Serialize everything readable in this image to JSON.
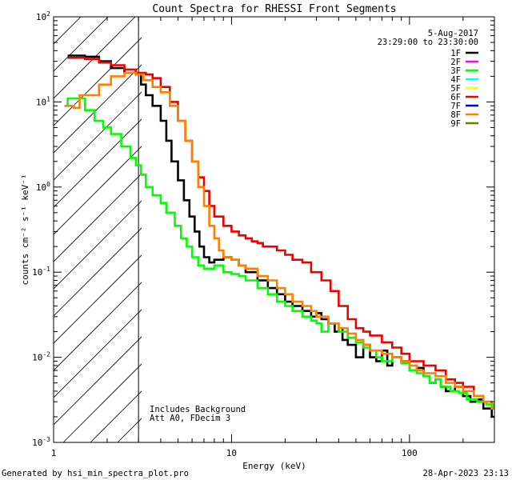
{
  "chart_data": {
    "type": "line",
    "title": "Count Spectra for RHESSI Front Segments",
    "xlabel": "Energy (keV)",
    "ylabel": "counts cm⁻² s⁻¹ keV⁻¹",
    "xscale": "log",
    "yscale": "log",
    "xlim": [
      1,
      300
    ],
    "ylim": [
      0.001,
      100
    ],
    "x_ticks": [
      {
        "value": 1,
        "label": "1"
      },
      {
        "value": 10,
        "label": "10"
      },
      {
        "value": 100,
        "label": "100"
      }
    ],
    "y_ticks": [
      {
        "value": 100,
        "base": "10",
        "exp": "2"
      },
      {
        "value": 10,
        "base": "10",
        "exp": "1"
      },
      {
        "value": 1,
        "base": "10",
        "exp": "0"
      },
      {
        "value": 0.1,
        "base": "10",
        "exp": "-1"
      },
      {
        "value": 0.01,
        "base": "10",
        "exp": "-2"
      },
      {
        "value": 0.001,
        "base": "10",
        "exp": "-3"
      }
    ],
    "date": "5-Aug-2017",
    "time_range": "23:29:00 to 23:30:00",
    "annotations": [
      "Includes Background",
      "Att A0, FDecim 3"
    ],
    "hatched_region_xmax": 3,
    "legend_location": "top-right",
    "legend": [
      {
        "label": "1F",
        "color": "#000000"
      },
      {
        "label": "2F",
        "color": "#ff00ff"
      },
      {
        "label": "3F",
        "color": "#00ff00"
      },
      {
        "label": "4F",
        "color": "#00ffff"
      },
      {
        "label": "5F",
        "color": "#ffff00"
      },
      {
        "label": "6F",
        "color": "#ee0000"
      },
      {
        "label": "7F",
        "color": "#0000cc"
      },
      {
        "label": "8F",
        "color": "#ff8000"
      },
      {
        "label": "9F",
        "color": "#6b7a00"
      }
    ],
    "series": [
      {
        "name": "1F",
        "color": "#000000",
        "points": [
          [
            1.2,
            35
          ],
          [
            1.5,
            34
          ],
          [
            1.8,
            30
          ],
          [
            2.1,
            25
          ],
          [
            2.5,
            22
          ],
          [
            2.9,
            21
          ],
          [
            3.1,
            16
          ],
          [
            3.3,
            12
          ],
          [
            3.6,
            9
          ],
          [
            4,
            6
          ],
          [
            4.3,
            3.5
          ],
          [
            4.6,
            2
          ],
          [
            5,
            1.2
          ],
          [
            5.4,
            0.7
          ],
          [
            5.8,
            0.45
          ],
          [
            6.2,
            0.3
          ],
          [
            6.6,
            0.2
          ],
          [
            7,
            0.15
          ],
          [
            7.5,
            0.13
          ],
          [
            8,
            0.14
          ],
          [
            9,
            0.15
          ],
          [
            10,
            0.14
          ],
          [
            11,
            0.12
          ],
          [
            12,
            0.1
          ],
          [
            14,
            0.08
          ],
          [
            16,
            0.065
          ],
          [
            18,
            0.055
          ],
          [
            20,
            0.045
          ],
          [
            22,
            0.04
          ],
          [
            25,
            0.035
          ],
          [
            28,
            0.03
          ],
          [
            30,
            0.033
          ],
          [
            32,
            0.028
          ],
          [
            35,
            0.025
          ],
          [
            38,
            0.02
          ],
          [
            40,
            0.022
          ],
          [
            42,
            0.016
          ],
          [
            45,
            0.014
          ],
          [
            50,
            0.01
          ],
          [
            55,
            0.014
          ],
          [
            60,
            0.01
          ],
          [
            65,
            0.009
          ],
          [
            70,
            0.012
          ],
          [
            75,
            0.008
          ],
          [
            80,
            0.01
          ],
          [
            90,
            0.009
          ],
          [
            100,
            0.007
          ],
          [
            110,
            0.0075
          ],
          [
            120,
            0.006
          ],
          [
            130,
            0.005
          ],
          [
            140,
            0.0055
          ],
          [
            150,
            0.0045
          ],
          [
            160,
            0.004
          ],
          [
            180,
            0.0045
          ],
          [
            200,
            0.0035
          ],
          [
            220,
            0.003
          ],
          [
            240,
            0.0032
          ],
          [
            260,
            0.0025
          ],
          [
            290,
            0.002
          ]
        ]
      },
      {
        "name": "6F",
        "color": "#ee0000",
        "points": [
          [
            1.2,
            33
          ],
          [
            1.5,
            32
          ],
          [
            1.8,
            29
          ],
          [
            2.1,
            27
          ],
          [
            2.5,
            24
          ],
          [
            2.9,
            22
          ],
          [
            3.3,
            21
          ],
          [
            3.6,
            19
          ],
          [
            4,
            15
          ],
          [
            4.5,
            10
          ],
          [
            5,
            6
          ],
          [
            5.5,
            3.5
          ],
          [
            6,
            2
          ],
          [
            6.5,
            1.3
          ],
          [
            7,
            0.9
          ],
          [
            7.5,
            0.6
          ],
          [
            8,
            0.45
          ],
          [
            9,
            0.35
          ],
          [
            10,
            0.3
          ],
          [
            11,
            0.27
          ],
          [
            12,
            0.25
          ],
          [
            13,
            0.23
          ],
          [
            14,
            0.22
          ],
          [
            15,
            0.2
          ],
          [
            16,
            0.2
          ],
          [
            18,
            0.18
          ],
          [
            20,
            0.16
          ],
          [
            22,
            0.14
          ],
          [
            25,
            0.13
          ],
          [
            28,
            0.1
          ],
          [
            32,
            0.08
          ],
          [
            36,
            0.06
          ],
          [
            40,
            0.04
          ],
          [
            45,
            0.028
          ],
          [
            50,
            0.022
          ],
          [
            55,
            0.02
          ],
          [
            60,
            0.018
          ],
          [
            70,
            0.015
          ],
          [
            80,
            0.013
          ],
          [
            90,
            0.011
          ],
          [
            100,
            0.009
          ],
          [
            120,
            0.008
          ],
          [
            140,
            0.007
          ],
          [
            160,
            0.0055
          ],
          [
            180,
            0.005
          ],
          [
            200,
            0.0045
          ],
          [
            230,
            0.0035
          ],
          [
            260,
            0.003
          ],
          [
            290,
            0.0025
          ]
        ]
      },
      {
        "name": "3F",
        "color": "#00ff00",
        "points": [
          [
            1.15,
            9
          ],
          [
            1.2,
            11
          ],
          [
            1.4,
            11
          ],
          [
            1.5,
            8
          ],
          [
            1.7,
            6
          ],
          [
            1.9,
            5
          ],
          [
            2.1,
            4.2
          ],
          [
            2.4,
            3
          ],
          [
            2.7,
            2.2
          ],
          [
            2.9,
            1.8
          ],
          [
            3.1,
            1.4
          ],
          [
            3.3,
            1
          ],
          [
            3.6,
            0.8
          ],
          [
            4,
            0.65
          ],
          [
            4.3,
            0.5
          ],
          [
            4.8,
            0.35
          ],
          [
            5.2,
            0.25
          ],
          [
            5.6,
            0.2
          ],
          [
            6,
            0.15
          ],
          [
            6.5,
            0.12
          ],
          [
            7,
            0.11
          ],
          [
            8,
            0.12
          ],
          [
            9,
            0.1
          ],
          [
            10,
            0.095
          ],
          [
            11,
            0.09
          ],
          [
            12,
            0.08
          ],
          [
            14,
            0.065
          ],
          [
            16,
            0.055
          ],
          [
            18,
            0.045
          ],
          [
            20,
            0.04
          ],
          [
            22,
            0.035
          ],
          [
            25,
            0.03
          ],
          [
            28,
            0.027
          ],
          [
            30,
            0.025
          ],
          [
            32,
            0.02
          ],
          [
            35,
            0.025
          ],
          [
            40,
            0.02
          ],
          [
            45,
            0.017
          ],
          [
            50,
            0.015
          ],
          [
            55,
            0.013
          ],
          [
            60,
            0.012
          ],
          [
            65,
            0.01
          ],
          [
            70,
            0.009
          ],
          [
            80,
            0.01
          ],
          [
            90,
            0.0085
          ],
          [
            100,
            0.007
          ],
          [
            110,
            0.0065
          ],
          [
            120,
            0.006
          ],
          [
            130,
            0.005
          ],
          [
            140,
            0.0055
          ],
          [
            150,
            0.0045
          ],
          [
            170,
            0.004
          ],
          [
            190,
            0.0038
          ],
          [
            210,
            0.0032
          ],
          [
            240,
            0.003
          ],
          [
            270,
            0.0028
          ],
          [
            295,
            0.0025
          ]
        ]
      },
      {
        "name": "8F",
        "color": "#ff8000",
        "points": [
          [
            1.15,
            9
          ],
          [
            1.3,
            8.5
          ],
          [
            1.4,
            12
          ],
          [
            1.6,
            12
          ],
          [
            1.8,
            16
          ],
          [
            2.1,
            20
          ],
          [
            2.5,
            22
          ],
          [
            2.9,
            21
          ],
          [
            3.2,
            18
          ],
          [
            3.6,
            15
          ],
          [
            4,
            13
          ],
          [
            4.5,
            9
          ],
          [
            5,
            6
          ],
          [
            5.5,
            3.5
          ],
          [
            6,
            2
          ],
          [
            6.5,
            1
          ],
          [
            7,
            0.6
          ],
          [
            7.5,
            0.35
          ],
          [
            8,
            0.25
          ],
          [
            8.5,
            0.18
          ],
          [
            9,
            0.15
          ],
          [
            10,
            0.14
          ],
          [
            11,
            0.12
          ],
          [
            12,
            0.11
          ],
          [
            14,
            0.09
          ],
          [
            16,
            0.08
          ],
          [
            18,
            0.065
          ],
          [
            20,
            0.055
          ],
          [
            22,
            0.045
          ],
          [
            25,
            0.04
          ],
          [
            28,
            0.035
          ],
          [
            30,
            0.03
          ],
          [
            35,
            0.025
          ],
          [
            40,
            0.022
          ],
          [
            45,
            0.019
          ],
          [
            50,
            0.016
          ],
          [
            55,
            0.014
          ],
          [
            60,
            0.012
          ],
          [
            70,
            0.011
          ],
          [
            80,
            0.01
          ],
          [
            90,
            0.009
          ],
          [
            100,
            0.008
          ],
          [
            110,
            0.007
          ],
          [
            120,
            0.0065
          ],
          [
            140,
            0.006
          ],
          [
            160,
            0.005
          ],
          [
            180,
            0.0045
          ],
          [
            200,
            0.004
          ],
          [
            230,
            0.0035
          ],
          [
            260,
            0.003
          ],
          [
            290,
            0.0025
          ]
        ]
      }
    ]
  },
  "footer": {
    "left": "Generated by hsi_min_spectra_plot.pro",
    "right": "28-Apr-2023 23:13"
  }
}
